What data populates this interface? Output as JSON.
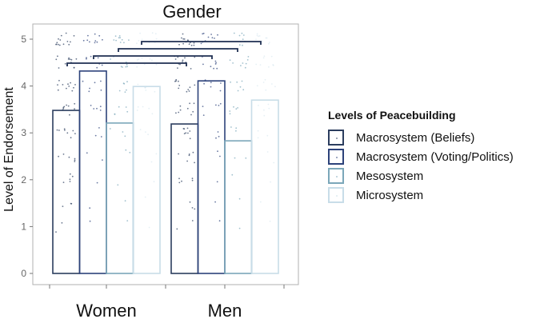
{
  "chart_data": {
    "type": "bar",
    "title": "Gender",
    "xlabel": "",
    "ylabel": "Level of Endorsement",
    "ylim": [
      0,
      5.2
    ],
    "yticks": [
      0,
      1,
      2,
      3,
      4,
      5
    ],
    "categories": [
      "Women",
      "Men"
    ],
    "legend_title": "Levels of Peacebuilding",
    "legend_position": "right",
    "grid": false,
    "series": [
      {
        "name": "Macrosystem (Beliefs)",
        "color": "#2b3d5e",
        "values": [
          3.48,
          3.19
        ]
      },
      {
        "name": "Macrosystem (Voting/Politics)",
        "color": "#2c427a",
        "values": [
          4.32,
          4.11
        ]
      },
      {
        "name": "Mesosystem",
        "color": "#7ba7b9",
        "values": [
          3.21,
          2.83
        ]
      },
      {
        "name": "Microsystem",
        "color": "#c8dde8",
        "values": [
          3.99,
          3.7
        ]
      }
    ],
    "significance_brackets": [
      {
        "from": "Women - Macrosystem (Beliefs)",
        "to": "Men - Macrosystem (Beliefs)",
        "y": 4.5
      },
      {
        "from": "Women - Macrosystem (Voting/Politics)",
        "to": "Men - Macrosystem (Voting/Politics)",
        "y": 4.65
      },
      {
        "from": "Women - Mesosystem",
        "to": "Men - Mesosystem",
        "y": 4.8
      },
      {
        "from": "Women - Microsystem",
        "to": "Men - Microsystem",
        "y": 4.95
      }
    ],
    "annotations": "Jittered individual responses overlaid on bars"
  }
}
